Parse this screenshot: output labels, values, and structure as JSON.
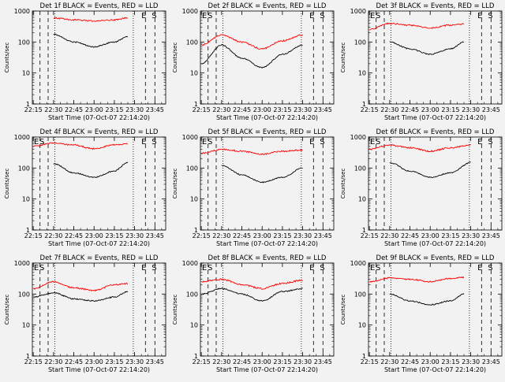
{
  "common": {
    "ylabel": "Counts/sec",
    "xlabel": "Start Time (07-Oct-07 22:14:20)",
    "ytick_labels": [
      "1",
      "10",
      "100",
      "1000"
    ],
    "xtick_labels": [
      "22:15",
      "22:30",
      "22:45",
      "23:00",
      "23:15",
      "23:30",
      "23:45"
    ],
    "marker_E": "E",
    "marker_S": "S",
    "black_color": "#000000",
    "red_color": "#ff0000"
  },
  "chart_data": [
    {
      "type": "line",
      "title": "Det 1f BLACK = Events, RED = LLD",
      "xlim": [
        "22:14:20",
        "23:53:00"
      ],
      "ylim": [
        1,
        1000
      ],
      "yscale": "log",
      "show_left_S": false,
      "series": [
        {
          "color": "red",
          "x": [
            "22:30",
            "22:45",
            "23:00",
            "23:15",
            "23:25"
          ],
          "values": [
            600,
            520,
            480,
            520,
            600
          ]
        },
        {
          "color": "black",
          "x": [
            "22:30",
            "22:45",
            "23:00",
            "23:15",
            "23:25"
          ],
          "values": [
            180,
            100,
            70,
            100,
            150
          ]
        }
      ]
    },
    {
      "type": "line",
      "title": "Det 2f BLACK = Events, RED = LLD",
      "xlim": [
        "22:14:20",
        "23:53:00"
      ],
      "ylim": [
        1,
        1000
      ],
      "yscale": "log",
      "show_left_S": true,
      "series": [
        {
          "color": "red",
          "x": [
            "22:15",
            "22:30",
            "22:45",
            "23:00",
            "23:15",
            "23:30"
          ],
          "values": [
            80,
            170,
            100,
            60,
            110,
            170
          ]
        },
        {
          "color": "black",
          "x": [
            "22:15",
            "22:30",
            "22:45",
            "23:00",
            "23:15",
            "23:30"
          ],
          "values": [
            20,
            80,
            30,
            15,
            40,
            80
          ]
        }
      ]
    },
    {
      "type": "line",
      "title": "Det 3f BLACK = Events, RED = LLD",
      "xlim": [
        "22:14:20",
        "23:53:00"
      ],
      "ylim": [
        1,
        1000
      ],
      "yscale": "log",
      "show_left_S": true,
      "series": [
        {
          "color": "red",
          "x": [
            "22:15",
            "22:30",
            "22:45",
            "23:00",
            "23:15",
            "23:25"
          ],
          "values": [
            250,
            400,
            350,
            280,
            350,
            380
          ]
        },
        {
          "color": "black",
          "x": [
            "22:30",
            "22:45",
            "23:00",
            "23:15",
            "23:25"
          ],
          "values": [
            100,
            60,
            40,
            60,
            100
          ]
        }
      ]
    },
    {
      "type": "line",
      "title": "Det 4f BLACK = Events, RED = LLD",
      "xlim": [
        "22:14:20",
        "23:53:00"
      ],
      "ylim": [
        1,
        1000
      ],
      "yscale": "log",
      "show_left_S": true,
      "series": [
        {
          "color": "red",
          "x": [
            "22:15",
            "22:30",
            "22:45",
            "23:00",
            "23:15",
            "23:25"
          ],
          "values": [
            500,
            650,
            550,
            420,
            560,
            600
          ]
        },
        {
          "color": "black",
          "x": [
            "22:30",
            "22:45",
            "23:00",
            "23:15",
            "23:25"
          ],
          "values": [
            140,
            70,
            50,
            80,
            150
          ]
        }
      ]
    },
    {
      "type": "line",
      "title": "Det 5f BLACK = Events, RED = LLD",
      "xlim": [
        "22:14:20",
        "23:53:00"
      ],
      "ylim": [
        1,
        1000
      ],
      "yscale": "log",
      "show_left_S": true,
      "series": [
        {
          "color": "red",
          "x": [
            "22:15",
            "22:30",
            "22:45",
            "23:00",
            "23:15",
            "23:30"
          ],
          "values": [
            300,
            400,
            350,
            280,
            350,
            380
          ]
        },
        {
          "color": "black",
          "x": [
            "22:30",
            "22:45",
            "23:00",
            "23:15",
            "23:30"
          ],
          "values": [
            120,
            60,
            35,
            50,
            100
          ]
        }
      ]
    },
    {
      "type": "line",
      "title": "Det 6f BLACK = Events, RED = LLD",
      "xlim": [
        "22:14:20",
        "23:53:00"
      ],
      "ylim": [
        1,
        1000
      ],
      "yscale": "log",
      "show_left_S": true,
      "series": [
        {
          "color": "red",
          "x": [
            "22:15",
            "22:30",
            "22:45",
            "23:00",
            "23:15",
            "23:30"
          ],
          "values": [
            400,
            550,
            450,
            350,
            450,
            550
          ]
        },
        {
          "color": "black",
          "x": [
            "22:30",
            "22:45",
            "23:00",
            "23:15",
            "23:30"
          ],
          "values": [
            150,
            80,
            50,
            70,
            150
          ]
        }
      ]
    },
    {
      "type": "line",
      "title": "Det 7f BLACK = Events, RED = LLD",
      "xlim": [
        "22:14:20",
        "23:53:00"
      ],
      "ylim": [
        1,
        1000
      ],
      "yscale": "log",
      "show_left_S": true,
      "series": [
        {
          "color": "red",
          "x": [
            "22:15",
            "22:30",
            "22:45",
            "23:00",
            "23:15",
            "23:25"
          ],
          "values": [
            150,
            250,
            160,
            130,
            200,
            220
          ]
        },
        {
          "color": "black",
          "x": [
            "22:15",
            "22:30",
            "22:45",
            "23:00",
            "23:15",
            "23:25"
          ],
          "values": [
            80,
            110,
            70,
            60,
            80,
            120
          ]
        }
      ]
    },
    {
      "type": "line",
      "title": "Det 8f BLACK = Events, RED = LLD",
      "xlim": [
        "22:14:20",
        "23:53:00"
      ],
      "ylim": [
        1,
        1000
      ],
      "yscale": "log",
      "show_left_S": true,
      "series": [
        {
          "color": "red",
          "x": [
            "22:15",
            "22:30",
            "22:45",
            "23:00",
            "23:15",
            "23:30"
          ],
          "values": [
            250,
            300,
            200,
            150,
            220,
            280
          ]
        },
        {
          "color": "black",
          "x": [
            "22:15",
            "22:30",
            "22:45",
            "23:00",
            "23:15",
            "23:30"
          ],
          "values": [
            100,
            150,
            100,
            60,
            120,
            150
          ]
        }
      ]
    },
    {
      "type": "line",
      "title": "Det 9f BLACK = Events, RED = LLD",
      "xlim": [
        "22:14:20",
        "23:53:00"
      ],
      "ylim": [
        1,
        1000
      ],
      "yscale": "log",
      "show_left_S": true,
      "series": [
        {
          "color": "red",
          "x": [
            "22:15",
            "22:30",
            "22:45",
            "23:00",
            "23:15",
            "23:25"
          ],
          "values": [
            250,
            330,
            300,
            250,
            320,
            350
          ]
        },
        {
          "color": "black",
          "x": [
            "22:30",
            "22:45",
            "23:00",
            "23:15",
            "23:25"
          ],
          "values": [
            100,
            60,
            45,
            60,
            100
          ]
        }
      ]
    }
  ]
}
